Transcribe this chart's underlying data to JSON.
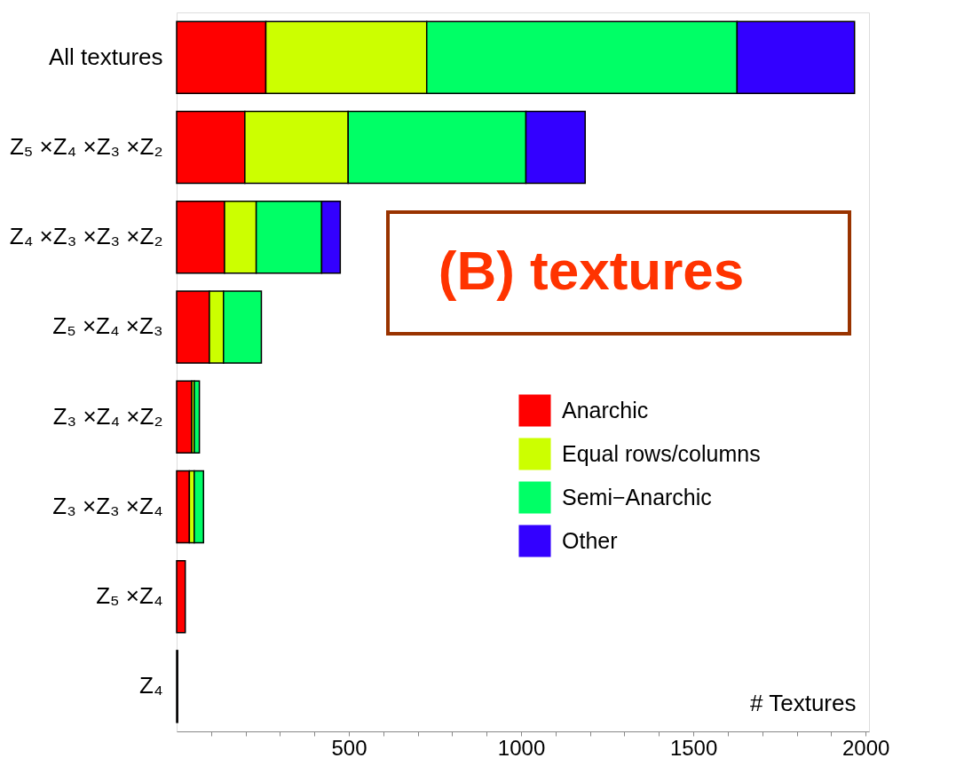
{
  "chart_data": {
    "type": "bar",
    "orientation": "horizontal",
    "stacked": true,
    "categories": [
      "All textures",
      "Z₅ ×Z₄ ×Z₃ ×Z₂",
      "Z₄ ×Z₃ ×Z₃ ×Z₂",
      "Z₅ ×Z₄ ×Z₃",
      "Z₃ ×Z₄ ×Z₂",
      "Z₃ ×Z₃ ×Z₄",
      "Z₅ ×Z₄",
      "Z₄"
    ],
    "series": [
      {
        "name": "Anarchic",
        "color": "#ff0000",
        "values": [
          259,
          198,
          139,
          95,
          44,
          37,
          25,
          3
        ]
      },
      {
        "name": "Equal rows/columns",
        "color": "#ccff00",
        "values": [
          467,
          300,
          92,
          41,
          7,
          14,
          null,
          null
        ]
      },
      {
        "name": "Semi−Anarchic",
        "color": "#00ff66",
        "values": [
          901,
          516,
          190,
          110,
          15,
          27,
          null,
          null
        ]
      },
      {
        "name": "Other",
        "color": "#3300ff",
        "values": [
          341,
          172,
          54,
          null,
          null,
          null,
          null,
          null
        ]
      }
    ],
    "xlabel": "# Textures",
    "xlim": [
      0,
      2010
    ],
    "xticks": [
      {
        "value": 100,
        "label": null
      },
      {
        "value": 200,
        "label": null
      },
      {
        "value": 300,
        "label": null
      },
      {
        "value": 400,
        "label": null
      },
      500,
      {
        "value": 600,
        "label": null
      },
      {
        "value": 700,
        "label": null
      },
      {
        "value": 800,
        "label": null
      },
      {
        "value": 900,
        "label": null
      },
      1000,
      {
        "value": 1100,
        "label": null
      },
      {
        "value": 1200,
        "label": null
      },
      {
        "value": 1300,
        "label": null
      },
      {
        "value": 1400,
        "label": null
      },
      1500,
      {
        "value": 1600,
        "label": null
      },
      {
        "value": 1700,
        "label": null
      },
      {
        "value": 1800,
        "label": null
      },
      {
        "value": 1900,
        "label": null
      },
      2000
    ],
    "annotations": [
      "(B) textures"
    ],
    "legend": "right",
    "grid": false
  }
}
